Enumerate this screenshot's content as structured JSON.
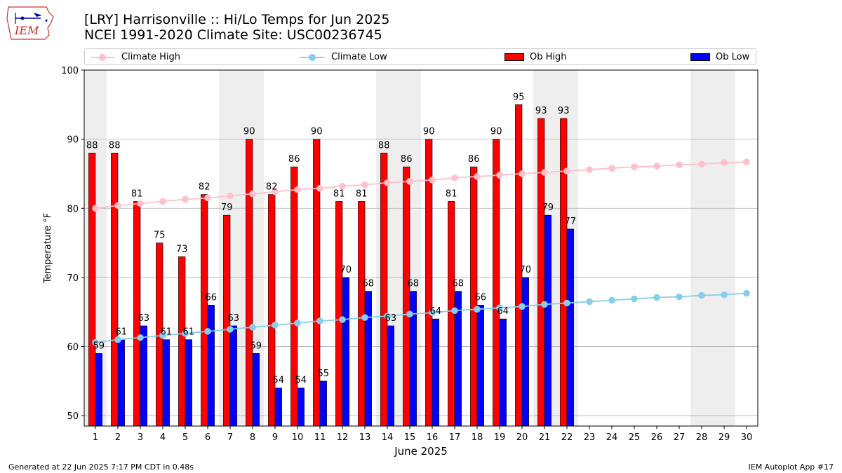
{
  "header": {
    "title_line1": "[LRY] Harrisonville :: Hi/Lo Temps for Jun 2025",
    "title_line2": "NCEI 1991-2020 Climate Site: USC00236745"
  },
  "logo": {
    "text": "IEM"
  },
  "legend": {
    "climate_high": "Climate High",
    "climate_low": "Climate Low",
    "ob_high": "Ob High",
    "ob_low": "Ob Low"
  },
  "footer": {
    "left": "Generated at 22 Jun 2025 7:17 PM CDT in 0.48s",
    "right": "IEM Autoplot App #17"
  },
  "colors": {
    "ob_high": "#ff0000",
    "ob_low": "#0000ff",
    "climate_high": "#ffc0cb",
    "climate_low": "#87ceeb",
    "weekend_shade": "#eeeeee",
    "grid": "#b0b0b0"
  },
  "chart_data": {
    "type": "bar",
    "xlabel": "June 2025",
    "ylabel": "Temperature °F",
    "ylim": [
      48.5,
      100
    ],
    "yticks": [
      50,
      60,
      70,
      80,
      90,
      100
    ],
    "days": [
      1,
      2,
      3,
      4,
      5,
      6,
      7,
      8,
      9,
      10,
      11,
      12,
      13,
      14,
      15,
      16,
      17,
      18,
      19,
      20,
      21,
      22,
      23,
      24,
      25,
      26,
      27,
      28,
      29,
      30
    ],
    "weekend_days": [
      1,
      7,
      8,
      14,
      15,
      21,
      22,
      28,
      29
    ],
    "series": [
      {
        "name": "Ob High",
        "values": [
          88,
          88,
          81,
          75,
          73,
          82,
          79,
          90,
          82,
          86,
          90,
          81,
          81,
          88,
          86,
          90,
          81,
          86,
          90,
          95,
          93,
          93
        ]
      },
      {
        "name": "Ob Low",
        "values": [
          59,
          61,
          63,
          61,
          61,
          66,
          63,
          59,
          54,
          54,
          55,
          70,
          68,
          63,
          68,
          64,
          68,
          66,
          64,
          70,
          79,
          77
        ]
      },
      {
        "name": "Climate High",
        "values": [
          80.0,
          80.4,
          80.7,
          81.0,
          81.3,
          81.5,
          81.8,
          82.1,
          82.4,
          82.7,
          82.9,
          83.2,
          83.4,
          83.7,
          83.9,
          84.1,
          84.4,
          84.6,
          84.8,
          85.0,
          85.2,
          85.4,
          85.6,
          85.8,
          86.0,
          86.1,
          86.3,
          86.4,
          86.6,
          86.7
        ]
      },
      {
        "name": "Climate Low",
        "values": [
          60.6,
          61.0,
          61.3,
          61.6,
          61.9,
          62.2,
          62.5,
          62.8,
          63.1,
          63.4,
          63.7,
          63.9,
          64.2,
          64.4,
          64.7,
          64.9,
          65.2,
          65.4,
          65.6,
          65.8,
          66.1,
          66.3,
          66.5,
          66.7,
          66.9,
          67.1,
          67.2,
          67.4,
          67.5,
          67.7
        ]
      }
    ],
    "annotations": {
      "high_labels": [
        88,
        88,
        81,
        75,
        73,
        82,
        79,
        90,
        82,
        86,
        90,
        81,
        81,
        88,
        86,
        90,
        81,
        86,
        90,
        95,
        93,
        93
      ],
      "low_labels": [
        59,
        61,
        63,
        61,
        61,
        66,
        63,
        59,
        54,
        54,
        55,
        70,
        68,
        63,
        68,
        64,
        68,
        66,
        64,
        70,
        79,
        77
      ]
    }
  }
}
